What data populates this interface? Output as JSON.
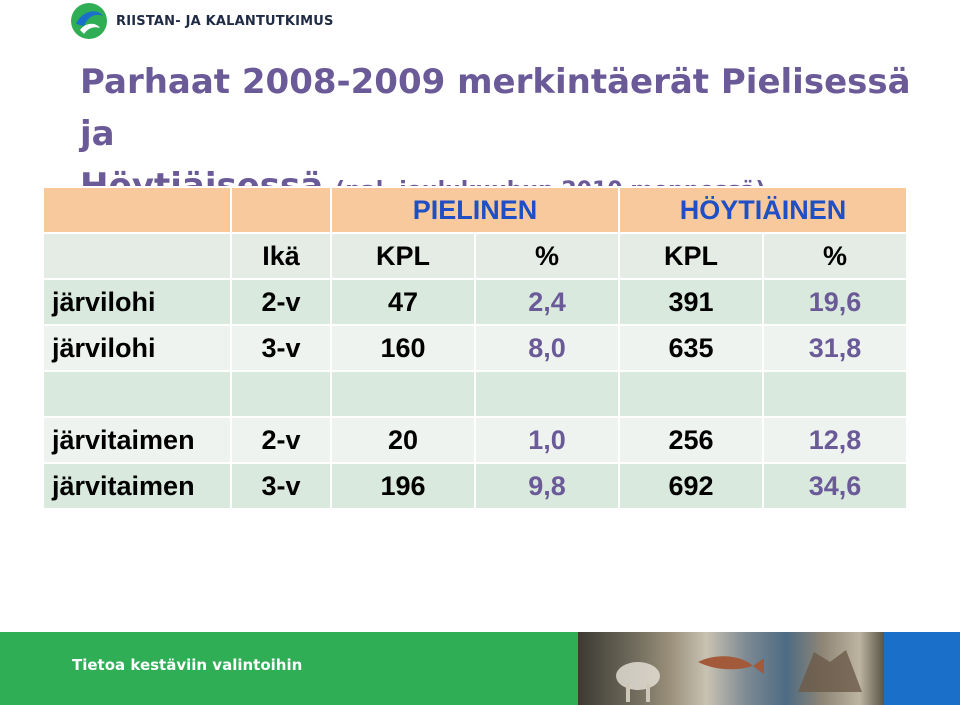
{
  "logo": {
    "text": "RIISTAN- JA KALANTUTKIMUS"
  },
  "title": {
    "line1": "Parhaat 2008-2009 merkintäerät Pielisessä ja",
    "line2_main": "Höytiäisessä ",
    "line2_sub": "(pal. joulukuuhun 2010 mennessä)"
  },
  "table": {
    "groups": [
      "PIELINEN",
      "HÖYTIÄINEN"
    ],
    "headers": [
      "",
      "Ikä",
      "KPL",
      "%",
      "KPL",
      "%"
    ],
    "rows": [
      [
        "järvilohi",
        "2-v",
        "47",
        "2,4",
        "391",
        "19,6"
      ],
      [
        "järvilohi",
        "3-v",
        "160",
        "8,0",
        "635",
        "31,8"
      ],
      [
        "",
        "",
        "",
        "",
        "",
        ""
      ],
      [
        "järvitaimen",
        "2-v",
        "20",
        "1,0",
        "256",
        "12,8"
      ],
      [
        "järvitaimen",
        "3-v",
        "196",
        "9,8",
        "692",
        "34,6"
      ]
    ]
  },
  "footer": {
    "tagline": "Tietoa kestäviin valintoihin"
  },
  "colors": {
    "title": "#6b5a98",
    "group_header": "#1f4fc4",
    "header_bg": "#f9c99e",
    "row_bg": "#d9e9dd",
    "footer_green": "#2fae55",
    "footer_blue": "#1a6fc9"
  }
}
